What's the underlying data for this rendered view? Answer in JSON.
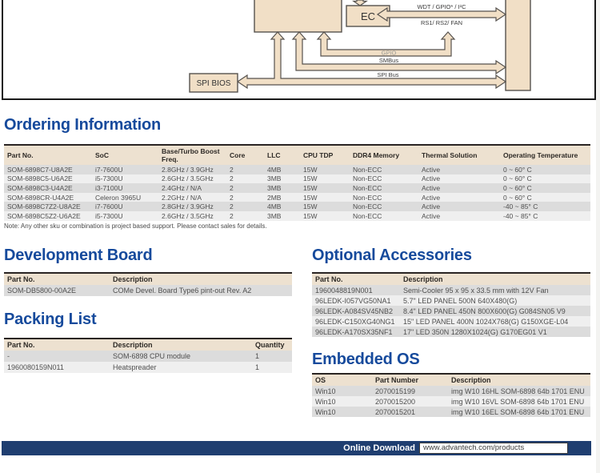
{
  "diagram": {
    "labels": {
      "ec": "EC",
      "spi_bios": "SPI BIOS",
      "wdt_gpio_i2c": "WDT / GPIO* / I²C",
      "rs_fan": "RS1/ RS2/ FAN",
      "gpio": "GPIO",
      "smbus": "SMBus",
      "spi_bus": "SPI Bus"
    },
    "colors": {
      "block_fill": "#F1DFC6",
      "block_border": "#56524E"
    }
  },
  "sections": {
    "ordering": {
      "title": "Ordering Information",
      "headers": [
        "Part No.",
        "SoC",
        "Base/Turbo Boost Freq.",
        "Core",
        "LLC",
        "CPU TDP",
        "DDR4 Memory",
        "Thermal Solution",
        "Operating Temperature"
      ],
      "rows": [
        [
          "SOM-6898C7-U8A2E",
          "i7-7600U",
          "2.8GHz / 3.9GHz",
          "2",
          "4MB",
          "15W",
          "Non-ECC",
          "Active",
          "0 ~ 60° C"
        ],
        [
          "SOM-6898C5-U6A2E",
          "i5-7300U",
          "2.6GHz / 3.5GHz",
          "2",
          "3MB",
          "15W",
          "Non-ECC",
          "Active",
          "0 ~ 60° C"
        ],
        [
          "SOM-6898C3-U4A2E",
          "i3-7100U",
          "2.4GHz / N/A",
          "2",
          "3MB",
          "15W",
          "Non-ECC",
          "Active",
          "0 ~ 60° C"
        ],
        [
          "SOM-6898CR-U4A2E",
          "Celeron 3965U",
          "2.2GHz / N/A",
          "2",
          "2MB",
          "15W",
          "Non-ECC",
          "Active",
          "0 ~ 60° C"
        ],
        [
          "SOM-6898C7Z2-U8A2E",
          "i7-7600U",
          "2.8GHz / 3.9GHz",
          "2",
          "4MB",
          "15W",
          "Non-ECC",
          "Active",
          "-40 ~ 85° C"
        ],
        [
          "SOM-6898C5Z2-U6A2E",
          "i5-7300U",
          "2.6GHz / 3.5GHz",
          "2",
          "3MB",
          "15W",
          "Non-ECC",
          "Active",
          "-40 ~ 85° C"
        ]
      ],
      "note": "Note: Any other sku or combination is project based support. Please contact sales for details."
    },
    "development_board": {
      "title": "Development Board",
      "headers": [
        "Part No.",
        "Description"
      ],
      "rows": [
        [
          "SOM-DB5800-00A2E",
          "COMe Devel. Board Type6 pint-out Rev. A2"
        ]
      ]
    },
    "packing_list": {
      "title": "Packing List",
      "headers": [
        "Part No.",
        "Description",
        "Quantity"
      ],
      "rows": [
        [
          "-",
          "SOM-6898 CPU module",
          "1"
        ],
        [
          "1960080159N011",
          "Heatspreader",
          "1"
        ]
      ]
    },
    "optional_accessories": {
      "title": "Optional Accessories",
      "headers": [
        "Part No.",
        "Description"
      ],
      "rows": [
        [
          "1960048819N001",
          "Semi-Cooler 95 x 95 x 33.5 mm with 12V Fan"
        ],
        [
          "96LEDK-I057VG50NA1",
          "5.7\" LED PANEL 500N 640X480(G)"
        ],
        [
          "96LEDK-A084SV45NB2",
          "8.4\" LED PANEL 450N 800X600(G) G084SN05 V9"
        ],
        [
          "96LEDK-C150XG40NG1",
          "15\" LED PANEL 400N 1024X768(G) G150XGE-L04"
        ],
        [
          "96LEDK-A170SX35NF1",
          "17\" LED 350N 1280X1024(G) G170EG01 V1"
        ]
      ]
    },
    "embedded_os": {
      "title": "Embedded OS",
      "headers": [
        "OS",
        "Part Number",
        "Description"
      ],
      "rows": [
        [
          "Win10",
          "2070015199",
          "img W10 16HL SOM-6898 64b 1701 ENU"
        ],
        [
          "Win10",
          "2070015200",
          "img W10 16VL SOM-6898 64b 1701 ENU"
        ],
        [
          "Win10",
          "2070015201",
          "img W10 16EL SOM-6898 64b 1701 ENU"
        ]
      ]
    }
  },
  "footer": {
    "label": "Online Download",
    "url": "www.advantech.com/products",
    "bar_color": "#1F3E70"
  },
  "theme": {
    "heading_color": "#164A9C",
    "table_header_bg": "#EDE1D0",
    "row_odd": "#DCDCDC",
    "row_even": "#EFEFEF"
  }
}
